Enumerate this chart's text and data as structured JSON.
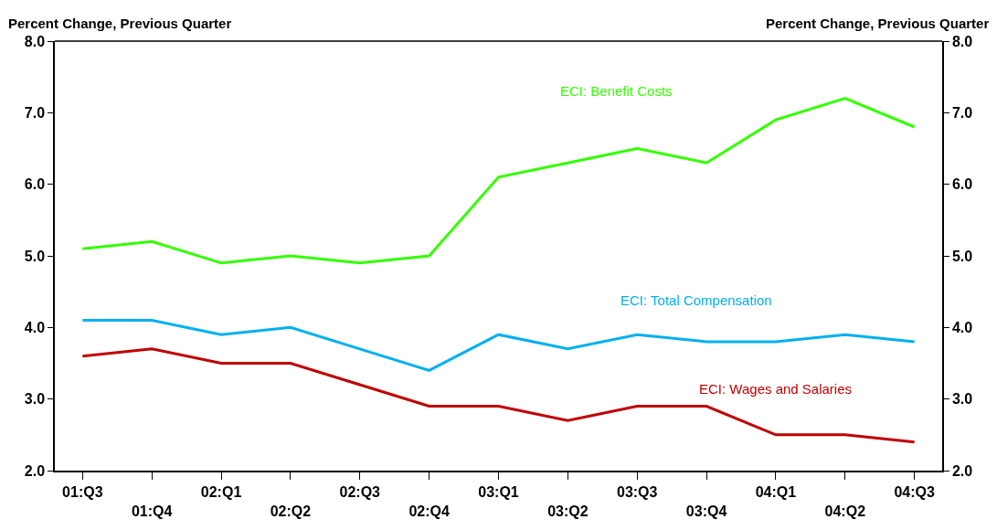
{
  "chart_data": {
    "type": "line",
    "ylabel": "Percent Change, Previous Quarter",
    "y2label": "Percent Change, Previous Quarter",
    "categories": [
      "01:Q3",
      "01:Q4",
      "02:Q1",
      "02:Q2",
      "02:Q3",
      "02:Q4",
      "03:Q1",
      "03:Q2",
      "03:Q3",
      "03:Q4",
      "04:Q1",
      "04:Q2",
      "04:Q3"
    ],
    "series": [
      {
        "name": "ECI: Benefit Costs",
        "color": "#33ff00",
        "values": [
          5.1,
          5.2,
          4.9,
          5.0,
          4.9,
          5.0,
          6.1,
          6.3,
          6.5,
          6.3,
          6.9,
          7.2,
          6.8
        ]
      },
      {
        "name": "ECI: Total Compensation",
        "color": "#00b0f0",
        "values": [
          4.1,
          4.1,
          3.9,
          4.0,
          3.7,
          3.4,
          3.9,
          3.7,
          3.9,
          3.8,
          3.8,
          3.9,
          3.8
        ]
      },
      {
        "name": "ECI: Wages and Salaries",
        "color": "#c00000",
        "values": [
          3.6,
          3.7,
          3.5,
          3.5,
          3.2,
          2.9,
          2.9,
          2.7,
          2.9,
          2.9,
          2.5,
          2.5,
          2.4
        ]
      }
    ],
    "ylim": [
      2.0,
      8.0
    ],
    "yticks": [
      {
        "value": 2,
        "label": "2.0"
      },
      {
        "value": 3,
        "label": "3.0"
      },
      {
        "value": 4,
        "label": "4.0"
      },
      {
        "value": 5,
        "label": "5.0"
      },
      {
        "value": 6,
        "label": "6.0"
      },
      {
        "value": 7,
        "label": "7.0"
      },
      {
        "value": 8,
        "label": "8.0"
      }
    ],
    "y2lim": [
      2.0,
      8.0
    ],
    "y2ticks": [
      {
        "value": 2,
        "label": "2.0"
      },
      {
        "value": 3,
        "label": "3.0"
      },
      {
        "value": 4,
        "label": "4.0"
      },
      {
        "value": 5,
        "label": "5.0"
      },
      {
        "value": 6,
        "label": "6.0"
      },
      {
        "value": 7,
        "label": "7.0"
      },
      {
        "value": 8,
        "label": "8.0"
      }
    ],
    "grid": false,
    "legend": false,
    "marker": "none",
    "line_style": "solid"
  }
}
